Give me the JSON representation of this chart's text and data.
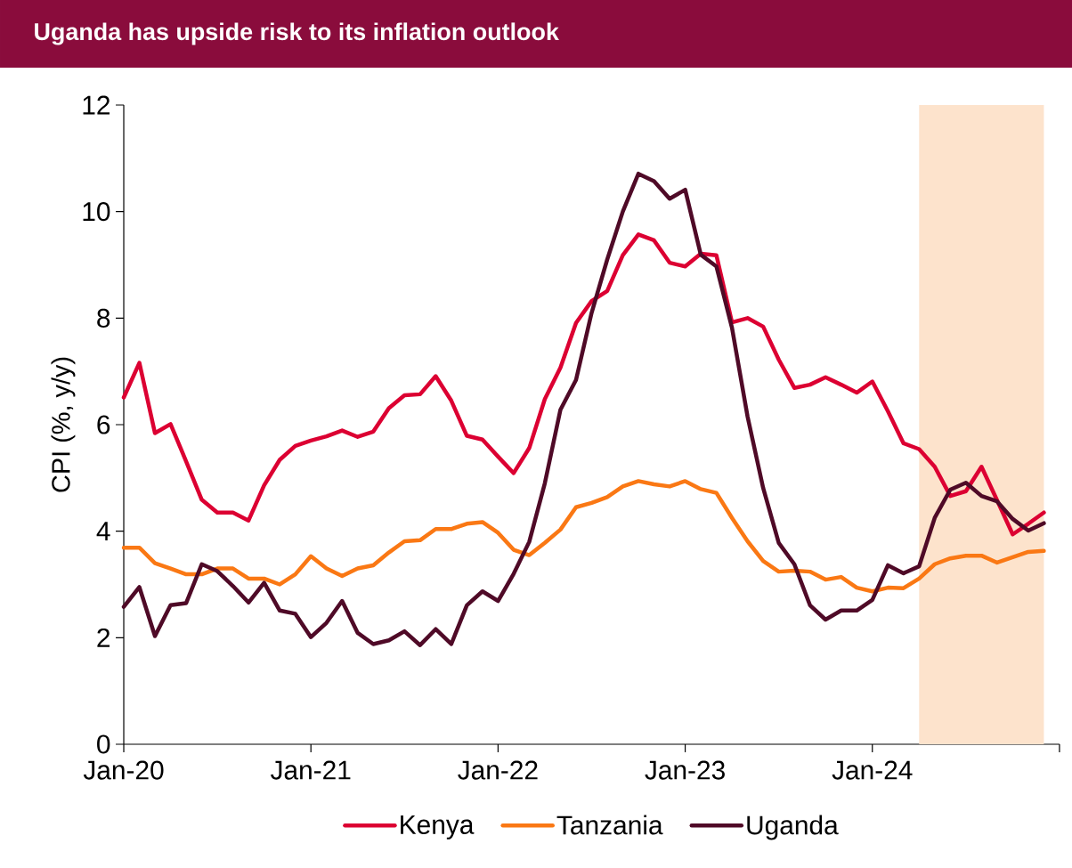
{
  "chart_data": {
    "type": "line",
    "title": "Uganda has upside risk to its inflation outlook",
    "ylabel": "CPI (%, y/y)",
    "x": [
      "2020-01",
      "2020-02",
      "2020-03",
      "2020-04",
      "2020-05",
      "2020-06",
      "2020-07",
      "2020-08",
      "2020-09",
      "2020-10",
      "2020-11",
      "2020-12",
      "2021-01",
      "2021-02",
      "2021-03",
      "2021-04",
      "2021-05",
      "2021-06",
      "2021-07",
      "2021-08",
      "2021-09",
      "2021-10",
      "2021-11",
      "2021-12",
      "2022-01",
      "2022-02",
      "2022-03",
      "2022-04",
      "2022-05",
      "2022-06",
      "2022-07",
      "2022-08",
      "2022-09",
      "2022-10",
      "2022-11",
      "2022-12",
      "2023-01",
      "2023-02",
      "2023-03",
      "2023-04",
      "2023-05",
      "2023-06",
      "2023-07",
      "2023-08",
      "2023-09",
      "2023-10",
      "2023-11",
      "2023-12",
      "2024-01",
      "2024-02",
      "2024-03",
      "2024-04",
      "2024-05",
      "2024-06",
      "2024-07",
      "2024-08",
      "2024-09",
      "2024-10",
      "2024-11",
      "2024-12"
    ],
    "series": [
      {
        "name": "Kenya",
        "color": "#dc0032",
        "values": [
          6.51,
          7.16,
          5.84,
          6.01,
          5.31,
          4.59,
          4.35,
          4.35,
          4.2,
          4.86,
          5.34,
          5.6,
          5.7,
          5.78,
          5.89,
          5.77,
          5.87,
          6.31,
          6.55,
          6.57,
          6.91,
          6.45,
          5.79,
          5.72,
          5.4,
          5.09,
          5.56,
          6.48,
          7.07,
          7.91,
          8.32,
          8.51,
          9.18,
          9.57,
          9.46,
          9.04,
          8.97,
          9.21,
          9.18,
          7.92,
          8.0,
          7.84,
          7.22,
          6.69,
          6.75,
          6.89,
          6.75,
          6.6,
          6.81,
          6.25,
          5.65,
          5.54,
          5.21,
          4.66,
          4.75,
          5.21,
          4.58,
          3.94,
          4.14,
          4.35
        ]
      },
      {
        "name": "Tanzania",
        "color": "#fa7814",
        "values": [
          3.69,
          3.69,
          3.4,
          3.3,
          3.19,
          3.19,
          3.3,
          3.3,
          3.11,
          3.11,
          3.0,
          3.19,
          3.53,
          3.3,
          3.16,
          3.3,
          3.36,
          3.6,
          3.81,
          3.83,
          4.04,
          4.04,
          4.14,
          4.17,
          3.97,
          3.65,
          3.55,
          3.78,
          4.03,
          4.45,
          4.53,
          4.64,
          4.84,
          4.94,
          4.88,
          4.84,
          4.94,
          4.79,
          4.72,
          4.25,
          3.81,
          3.44,
          3.24,
          3.26,
          3.24,
          3.09,
          3.14,
          2.94,
          2.87,
          2.94,
          2.93,
          3.11,
          3.38,
          3.49,
          3.54,
          3.54,
          3.41,
          3.51,
          3.61,
          3.63
        ]
      },
      {
        "name": "Uganda",
        "color": "#4f0a27",
        "values": [
          2.58,
          2.95,
          2.03,
          2.61,
          2.65,
          3.38,
          3.25,
          2.97,
          2.66,
          3.03,
          2.51,
          2.45,
          2.01,
          2.28,
          2.69,
          2.09,
          1.88,
          1.95,
          2.12,
          1.86,
          2.16,
          1.88,
          2.61,
          2.87,
          2.69,
          3.2,
          3.8,
          4.9,
          6.28,
          6.84,
          8.1,
          9.1,
          10.0,
          10.71,
          10.57,
          10.24,
          10.41,
          9.19,
          8.97,
          7.82,
          6.15,
          4.81,
          3.78,
          3.38,
          2.61,
          2.34,
          2.51,
          2.51,
          2.71,
          3.36,
          3.21,
          3.34,
          4.25,
          4.78,
          4.91,
          4.66,
          4.56,
          4.23,
          4.01,
          4.15
        ]
      }
    ],
    "xlim": [
      "2020-01",
      "2025-01"
    ],
    "xticks": [
      {
        "value": "2020-01",
        "label": "Jan-20"
      },
      {
        "value": "2021-01",
        "label": "Jan-21"
      },
      {
        "value": "2022-01",
        "label": "Jan-22"
      },
      {
        "value": "2023-01",
        "label": "Jan-23"
      },
      {
        "value": "2024-01",
        "label": "Jan-24"
      },
      {
        "value": "2025-01",
        "label": null
      }
    ],
    "ylim": [
      0,
      12
    ],
    "yticks": [
      0,
      2,
      4,
      6,
      8,
      10,
      12
    ],
    "bands": [
      {
        "axis": "x",
        "from": "2024-04",
        "to": "2024-12",
        "color": "#fde3cc"
      }
    ],
    "grid": false,
    "legend": "bottom",
    "marker": "none",
    "line_style": "solid"
  }
}
